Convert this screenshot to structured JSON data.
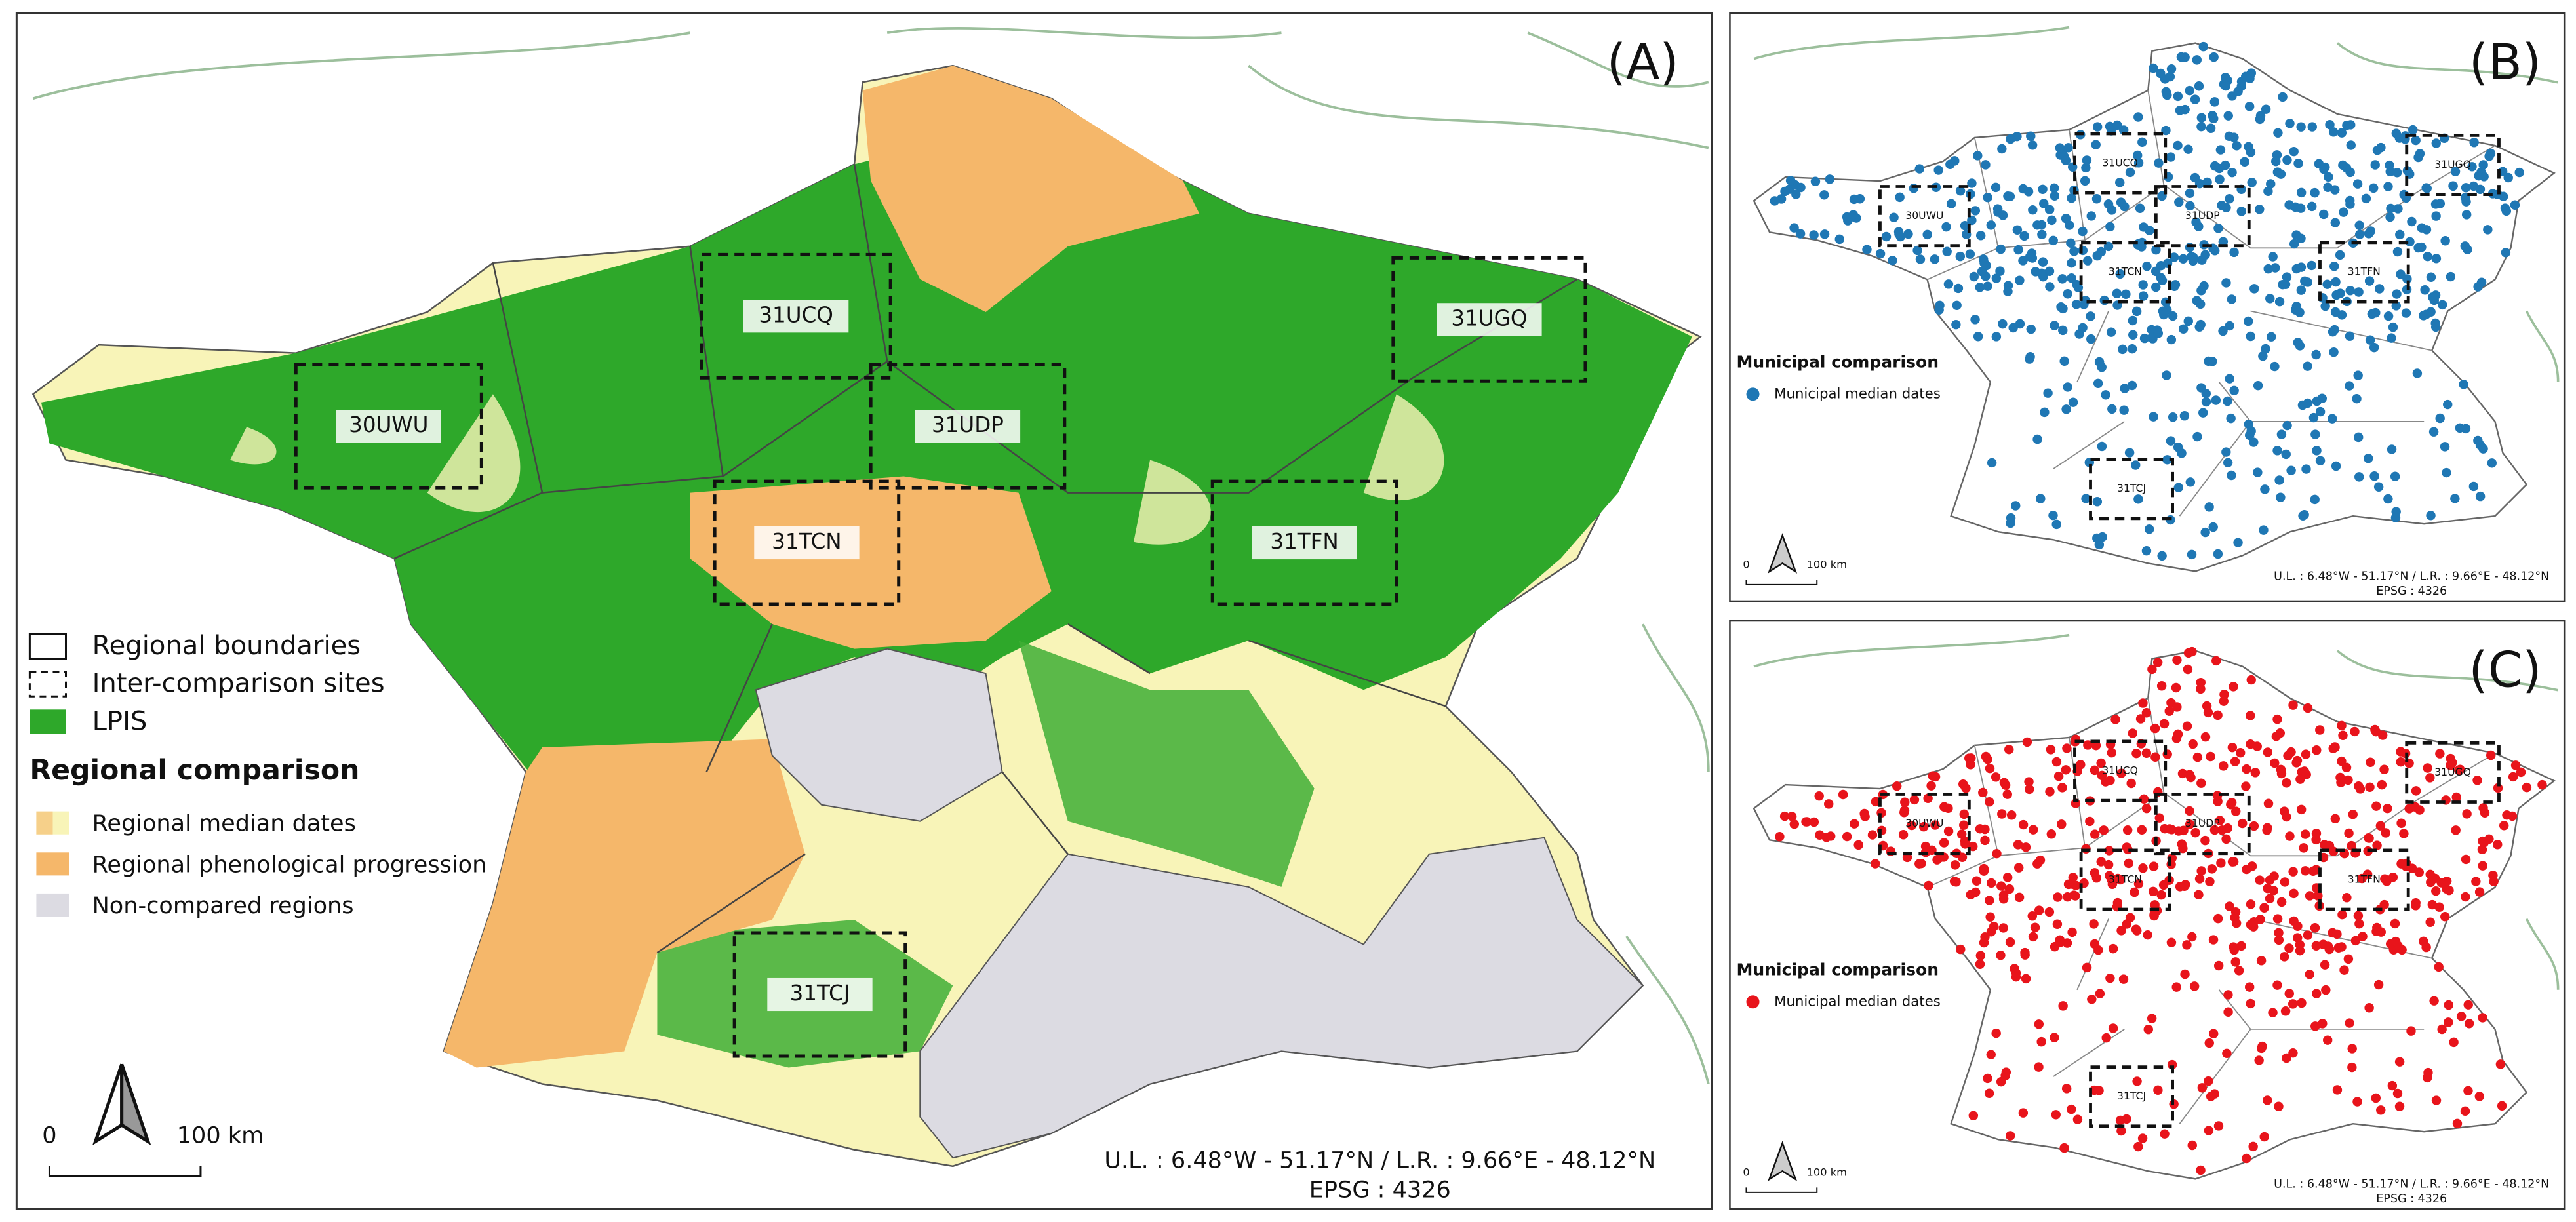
{
  "tiles": [
    "31UCQ",
    "30UWU",
    "31UDP",
    "31TCN",
    "31TFN",
    "31UGQ",
    "31TCJ"
  ],
  "panel_a": {
    "label": "(A)",
    "legend": {
      "items": [
        "Regional boundaries",
        "Inter-comparison sites",
        "LPIS"
      ],
      "heading": "Regional comparison",
      "classes": [
        "Regional median dates",
        "Regional phenological progression",
        "Non-compared regions"
      ]
    },
    "scale": {
      "zero": "0",
      "length": "100 km"
    },
    "extent": "U.L. : 6.48°W - 51.17°N / L.R. : 9.66°E - 48.12°N",
    "epsg": "EPSG : 4326"
  },
  "panel_b": {
    "label": "(B)",
    "legend_heading": "Municipal comparison",
    "legend_item": "Municipal median dates"
  },
  "panel_c": {
    "label": "(C)",
    "legend_heading": "Municipal comparison",
    "legend_item": "Municipal median dates"
  }
}
